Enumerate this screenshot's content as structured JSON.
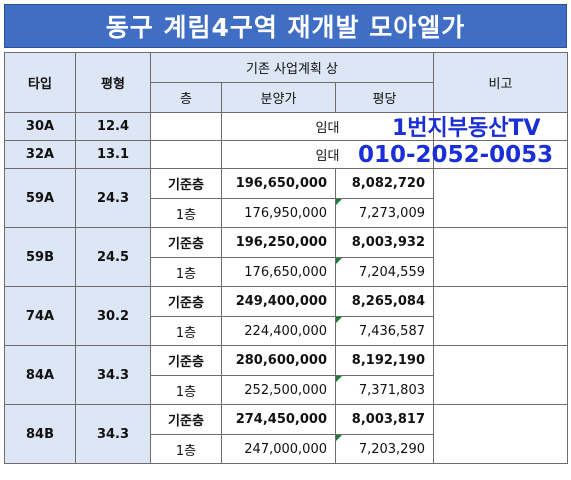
{
  "title": "동구 계림4구역 재개발 모아엘가",
  "header": {
    "type": "타입",
    "pyeong": "평형",
    "plan_group": "기존 사업계획 상",
    "floor": "층",
    "sale_price": "분양가",
    "per_pyeong": "평당",
    "note": "비고"
  },
  "rows": [
    {
      "type": "30A",
      "pyeong": "12.4",
      "plan_note": "임대"
    },
    {
      "type": "32A",
      "pyeong": "13.1",
      "plan_note": "임대"
    },
    {
      "type": "59A",
      "pyeong": "24.3",
      "r1": {
        "floor": "기준층",
        "price": "196,650,000",
        "per": "8,082,720"
      },
      "r2": {
        "floor": "1층",
        "price": "176,950,000",
        "per": "7,273,009"
      }
    },
    {
      "type": "59B",
      "pyeong": "24.5",
      "r1": {
        "floor": "기준층",
        "price": "196,250,000",
        "per": "8,003,932"
      },
      "r2": {
        "floor": "1층",
        "price": "176,650,000",
        "per": "7,204,559"
      }
    },
    {
      "type": "74A",
      "pyeong": "30.2",
      "r1": {
        "floor": "기준층",
        "price": "249,400,000",
        "per": "8,265,084"
      },
      "r2": {
        "floor": "1층",
        "price": "224,400,000",
        "per": "7,436,587"
      }
    },
    {
      "type": "84A",
      "pyeong": "34.3",
      "r1": {
        "floor": "기준층",
        "price": "280,600,000",
        "per": "8,192,190"
      },
      "r2": {
        "floor": "1층",
        "price": "252,500,000",
        "per": "7,371,803"
      }
    },
    {
      "type": "84B",
      "pyeong": "34.3",
      "r1": {
        "floor": "기준층",
        "price": "274,450,000",
        "per": "8,003,817"
      },
      "r2": {
        "floor": "1층",
        "price": "247,000,000",
        "per": "7,203,290"
      }
    }
  ],
  "overlay": {
    "line1": "1번지부동산TV",
    "line2": "010-2052-0053"
  },
  "colors": {
    "title_bg": "#3f6ec4",
    "header_bg": "#dce6f4",
    "overlay_text": "#1a2fd6"
  }
}
